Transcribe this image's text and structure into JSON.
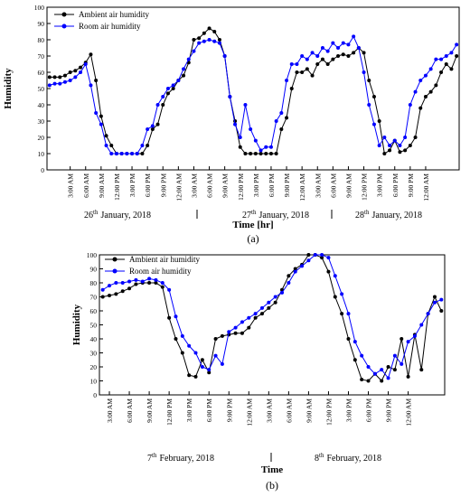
{
  "chart_data": [
    {
      "type": "line",
      "panel_label": "(a)",
      "y_label": "Humidity",
      "x_label": "Time  [hr]",
      "date_labels": [
        {
          "day": "26",
          "suffix": "th",
          "text": "January, 2018"
        },
        {
          "day": "27",
          "suffix": "th",
          "text": "January, 2018"
        },
        {
          "day": "28",
          "suffix": "th",
          "text": "January, 2018"
        }
      ],
      "categories": [
        null,
        null,
        null,
        null,
        "3:00 AM",
        null,
        null,
        "6:00 AM",
        null,
        null,
        "9:00 AM",
        null,
        null,
        "12:00 PM",
        null,
        null,
        "3:00 PM",
        null,
        null,
        "6:00 PM",
        null,
        null,
        "9:00 PM",
        null,
        null,
        "12:00 AM",
        null,
        null,
        "3:00 AM",
        null,
        null,
        "6:00 AM",
        null,
        null,
        "9:00 AM",
        null,
        null,
        "12:00 PM",
        null,
        null,
        "3:00 PM",
        null,
        null,
        "6:00 PM",
        null,
        null,
        "9:00 PM",
        null,
        null,
        "12:00 AM",
        null,
        null,
        "3:00 AM",
        null,
        null,
        "6:00 AM",
        null,
        null,
        "9:00 AM",
        null,
        null,
        "12:00 PM",
        null,
        null,
        "3:00 PM",
        null,
        null,
        "6:00 PM",
        null,
        null,
        "9:00 PM",
        null,
        null,
        "12:00 AM",
        null,
        null,
        null,
        null,
        null,
        null
      ],
      "series": [
        {
          "name": "Ambient air humidity",
          "color": "#000000",
          "values": [
            57,
            57,
            57,
            58,
            60,
            61,
            63,
            66,
            71,
            55,
            33,
            21,
            15,
            10,
            10,
            10,
            10,
            10,
            10,
            15,
            25,
            28,
            40,
            47,
            50,
            55,
            58,
            66,
            80,
            81,
            84,
            87,
            85,
            80,
            70,
            45,
            30,
            14,
            10,
            10,
            10,
            10,
            10,
            10,
            10,
            25,
            32,
            50,
            60,
            60,
            62,
            58,
            65,
            68,
            65,
            68,
            70,
            71,
            70,
            72,
            75,
            72,
            55,
            45,
            30,
            10,
            12,
            18,
            11,
            12,
            15,
            20,
            38,
            45,
            48,
            52,
            60,
            65,
            62,
            70
          ]
        },
        {
          "name": "Room air humidity",
          "color": "#0000ff",
          "values": [
            52,
            53,
            53,
            54,
            55,
            57,
            60,
            65,
            52,
            35,
            28,
            15,
            10,
            10,
            10,
            10,
            10,
            10,
            15,
            25,
            27,
            40,
            45,
            50,
            52,
            55,
            62,
            68,
            73,
            78,
            79,
            80,
            79,
            78,
            70,
            45,
            28,
            20,
            40,
            25,
            18,
            12,
            14,
            14,
            30,
            35,
            55,
            65,
            65,
            70,
            68,
            72,
            70,
            75,
            73,
            78,
            75,
            78,
            77,
            82,
            75,
            60,
            40,
            28,
            15,
            20,
            15,
            18,
            15,
            20,
            40,
            48,
            55,
            58,
            62,
            68,
            68,
            70,
            72,
            77
          ]
        }
      ],
      "ylim": [
        0,
        100
      ],
      "yticks": [
        0,
        10,
        20,
        30,
        40,
        50,
        60,
        70,
        80,
        90,
        100
      ],
      "legend": "upper left",
      "marker": "circle"
    },
    {
      "type": "line",
      "panel_label": "(b)",
      "y_label": "Humidity",
      "x_label": "Time",
      "date_labels": [
        {
          "day": "7",
          "suffix": "th",
          "text": "February, 2018"
        },
        {
          "day": "8",
          "suffix": "th",
          "text": "February, 2018"
        }
      ],
      "categories": [
        null,
        "3:00 AM",
        null,
        null,
        "6:00 AM",
        null,
        null,
        "9:00 AM",
        null,
        null,
        "12:00 PM",
        null,
        null,
        "3:00 PM",
        null,
        null,
        "6:00 PM",
        null,
        null,
        "9:00 PM",
        null,
        null,
        "12:00 AM",
        null,
        null,
        "3:00 AM",
        null,
        null,
        "6:00 AM",
        null,
        null,
        "9:00 AM",
        null,
        null,
        "12:00 PM",
        null,
        null,
        "3:00 PM",
        null,
        null,
        "6:00 PM",
        null,
        null,
        "9:00 PM",
        null,
        null,
        "12:00 AM",
        null,
        null,
        null,
        null,
        null
      ],
      "series": [
        {
          "name": "Ambient air humidity",
          "color": "#000000",
          "values": [
            70,
            71,
            72,
            74,
            76,
            79,
            80,
            80,
            80,
            77,
            55,
            40,
            30,
            14,
            13,
            25,
            16,
            40,
            42,
            43,
            44,
            44,
            48,
            55,
            58,
            62,
            66,
            75,
            85,
            90,
            93,
            100,
            100,
            98,
            88,
            70,
            58,
            40,
            25,
            11,
            10,
            15,
            10,
            20,
            18,
            40,
            13,
            43,
            18,
            58,
            70,
            60
          ]
        },
        {
          "name": "Room air humidity",
          "color": "#0000ff",
          "values": [
            75,
            78,
            80,
            80,
            81,
            82,
            81,
            83,
            82,
            80,
            75,
            56,
            42,
            35,
            30,
            20,
            18,
            28,
            22,
            45,
            48,
            52,
            55,
            58,
            62,
            66,
            70,
            73,
            80,
            88,
            92,
            96,
            100,
            100,
            98,
            85,
            72,
            58,
            38,
            28,
            20,
            15,
            18,
            12,
            28,
            22,
            38,
            42,
            50,
            58,
            66,
            68
          ]
        }
      ],
      "ylim": [
        0,
        100
      ],
      "yticks": [
        0,
        10,
        20,
        30,
        40,
        50,
        60,
        70,
        80,
        90,
        100
      ],
      "legend": "upper left",
      "marker": "circle"
    }
  ]
}
